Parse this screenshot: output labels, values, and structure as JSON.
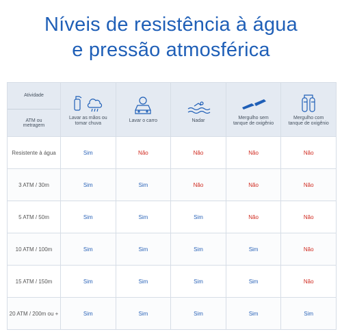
{
  "title": [
    "Níveis de resistência à água",
    "e pressão atmosférica"
  ],
  "header": {
    "activity_label": "Atividade",
    "metric_label": "ATM ou metragem"
  },
  "columns": [
    "Lavar as mãos ou tomar chuva",
    "Lavar o carro",
    "Nadar",
    "Mergulho sem tanque de oxigênio",
    "Mergulho com tanque de oxigênio"
  ],
  "rows": [
    {
      "label": "Resistente à água",
      "values": [
        "Sim",
        "Não",
        "Não",
        "Não",
        "Não"
      ]
    },
    {
      "label": "3 ATM / 30m",
      "values": [
        "Sim",
        "Sim",
        "Não",
        "Não",
        "Não"
      ]
    },
    {
      "label": "5 ATM / 50m",
      "values": [
        "Sim",
        "Sim",
        "Sim",
        "Não",
        "Não"
      ]
    },
    {
      "label": "10 ATM / 100m",
      "values": [
        "Sim",
        "Sim",
        "Sim",
        "Sim",
        "Não"
      ]
    },
    {
      "label": "15 ATM / 150m",
      "values": [
        "Sim",
        "Sim",
        "Sim",
        "Sim",
        "Não"
      ]
    },
    {
      "label": "20 ATM / 200m ou +",
      "values": [
        "Sim",
        "Sim",
        "Sim",
        "Sim",
        "Sim"
      ]
    }
  ]
}
